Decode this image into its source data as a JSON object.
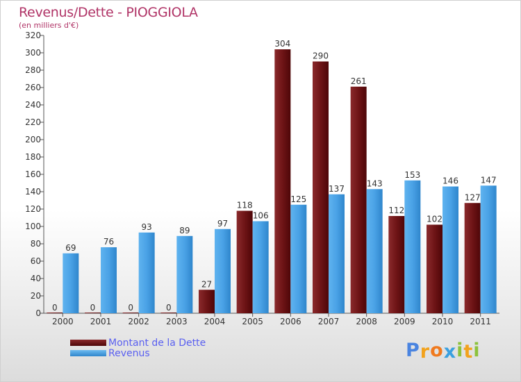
{
  "chart_data": {
    "type": "bar",
    "title": "Revenus/Dette - PIOGGIOLA",
    "subtitle": "(en milliers d'€)",
    "categories": [
      "2000",
      "2001",
      "2002",
      "2003",
      "2004",
      "2005",
      "2006",
      "2007",
      "2008",
      "2009",
      "2010",
      "2011"
    ],
    "series": [
      {
        "name": "Montant de la Dette",
        "color": "#6b0f12",
        "values": [
          0,
          0,
          0,
          0,
          27,
          118,
          304,
          290,
          261,
          112,
          102,
          127
        ]
      },
      {
        "name": "Revenus",
        "color": "#4aa2e6",
        "values": [
          69,
          76,
          93,
          89,
          97,
          106,
          125,
          137,
          143,
          153,
          146,
          147
        ]
      }
    ],
    "ylim": [
      0,
      320
    ],
    "ytick_step": 20,
    "grid": false,
    "legend": "bottom-left",
    "xlabel": "",
    "ylabel": ""
  },
  "logo": {
    "letters": [
      "P",
      "r",
      "o",
      "x",
      "i",
      "t",
      "i"
    ],
    "colors": [
      "#4a84e0",
      "#f2a21c",
      "#f07a1e",
      "#3aa0e0",
      "#8cc23c",
      "#f2a21c",
      "#8cc23c"
    ]
  }
}
